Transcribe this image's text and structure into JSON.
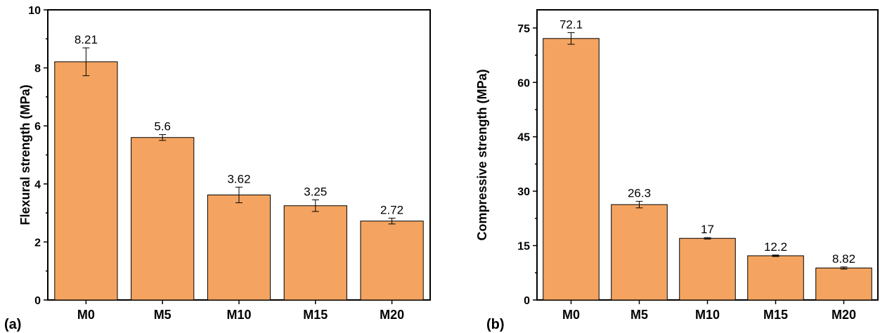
{
  "chart_data": [
    {
      "type": "bar",
      "panel_label": "(a)",
      "categories": [
        "M0",
        "M5",
        "M10",
        "M15",
        "M20"
      ],
      "values": [
        8.21,
        5.6,
        3.62,
        3.25,
        2.72
      ],
      "value_labels": [
        "8.21",
        "5.6",
        "3.62",
        "3.25",
        "2.72"
      ],
      "errors": [
        0.48,
        0.1,
        0.27,
        0.2,
        0.1
      ],
      "ylabel": "Flexural strength (MPa)",
      "xlabel": "",
      "ylim": [
        0,
        10
      ],
      "yticks": [
        0,
        2,
        4,
        6,
        8,
        10
      ],
      "bar_color": "#F4A460"
    },
    {
      "type": "bar",
      "panel_label": "(b)",
      "categories": [
        "M0",
        "M5",
        "M10",
        "M15",
        "M20"
      ],
      "values": [
        72.1,
        26.3,
        17,
        12.2,
        8.82
      ],
      "value_labels": [
        "72.1",
        "26.3",
        "17",
        "12.2",
        "8.82"
      ],
      "errors": [
        1.6,
        0.9,
        0.2,
        0.2,
        0.3
      ],
      "ylabel": "Compressive strength (MPa)",
      "xlabel": "",
      "ylim": [
        0,
        80
      ],
      "yticks": [
        0,
        15,
        30,
        45,
        60,
        75
      ],
      "bar_color": "#F4A460"
    }
  ]
}
